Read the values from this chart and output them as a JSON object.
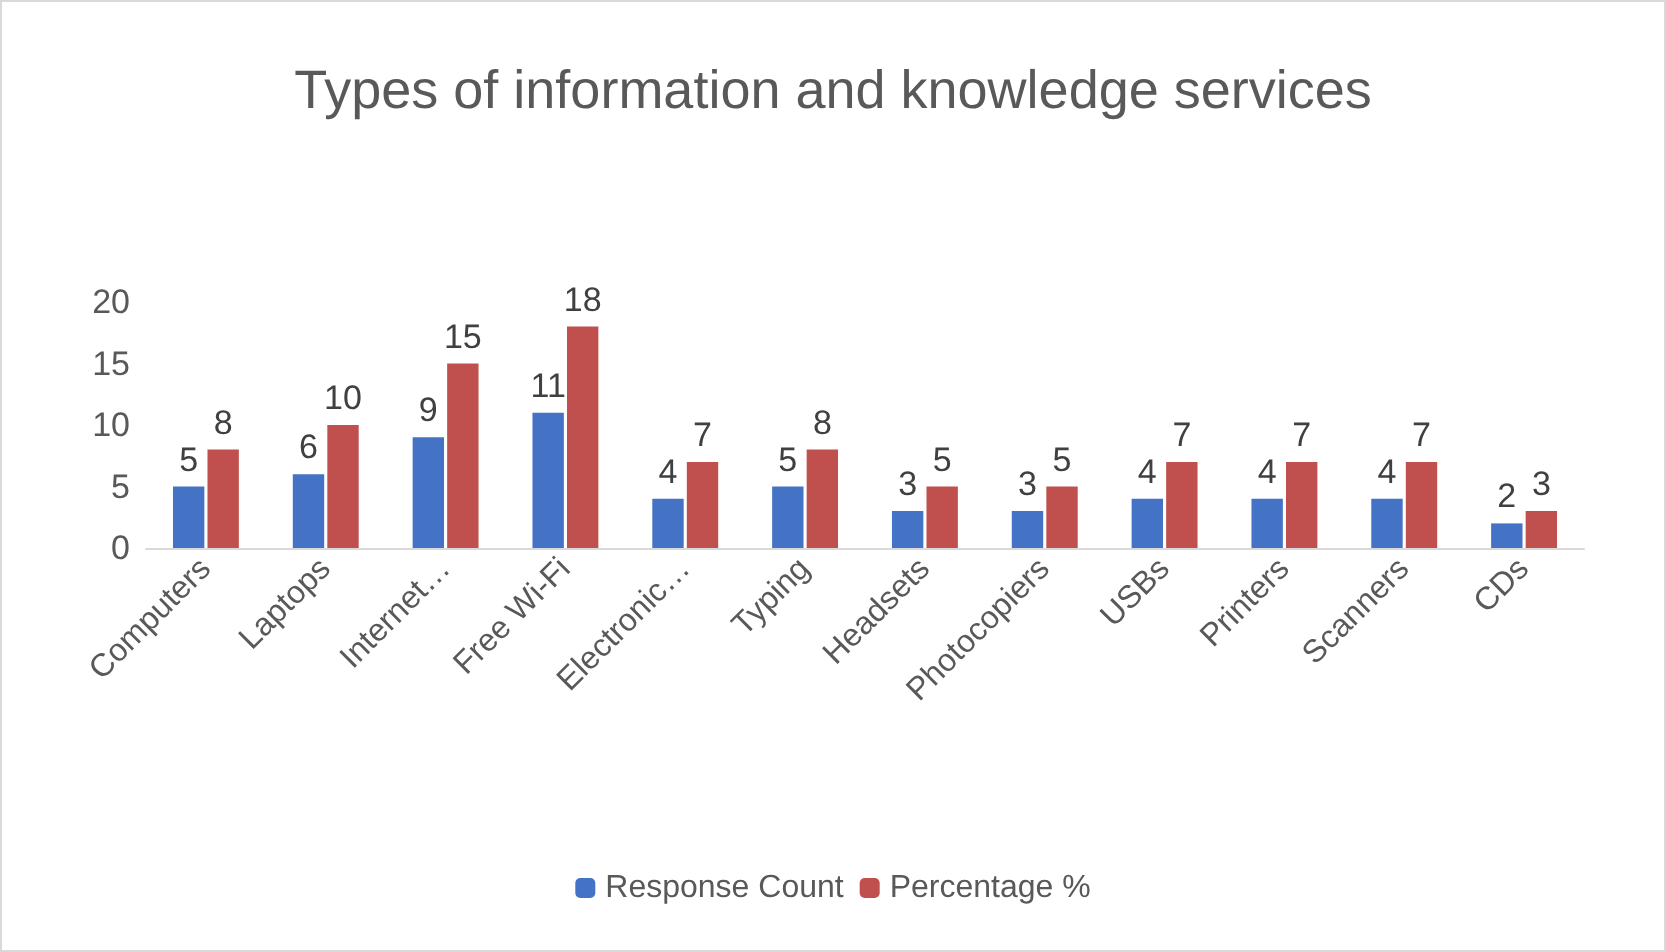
{
  "chart_data": {
    "type": "bar",
    "title": "Types of information and knowledge services",
    "categories": [
      "Computers",
      "Laptops",
      "Internet…",
      "Free Wi-Fi",
      "Electronic…",
      "Typing",
      "Headsets",
      "Photocopiers",
      "USBs",
      "Printers",
      "Scanners",
      "CDs"
    ],
    "series": [
      {
        "name": "Response Count",
        "color": "#4472c4",
        "values": [
          5,
          6,
          9,
          11,
          4,
          5,
          3,
          3,
          4,
          4,
          4,
          2
        ]
      },
      {
        "name": "Percentage %",
        "color": "#c0504d",
        "values": [
          8,
          10,
          15,
          18,
          7,
          8,
          5,
          5,
          7,
          7,
          7,
          3
        ]
      }
    ],
    "ylim": [
      0,
      20
    ],
    "yticks": [
      0,
      5,
      10,
      15,
      20
    ],
    "grid": false,
    "legend": "bottom",
    "data_labels": true
  }
}
